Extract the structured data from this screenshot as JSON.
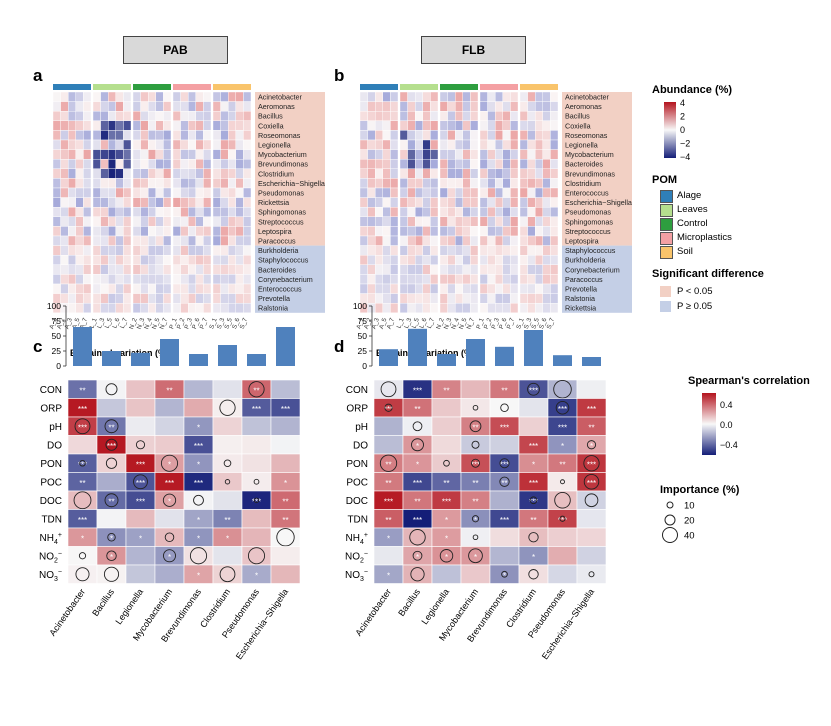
{
  "panels": {
    "left_title": "PAB",
    "right_title": "FLB",
    "labels": {
      "a": "a",
      "b": "b",
      "c": "c",
      "d": "d"
    }
  },
  "heatmap_a": {
    "genera": [
      "Acinetobacter",
      "Aeromonas",
      "Bacillus",
      "Coxiella",
      "Roseomonas",
      "Legionella",
      "Mycobacterium",
      "Brevundimonas",
      "Clostridium",
      "Escherichia−Shigella",
      "Pseudomonas",
      "Rickettsia",
      "Sphingomonas",
      "Streptococcus",
      "Leptospira",
      "Paracoccus",
      "Burkholderia",
      "Staphylococcus",
      "Bacteroides",
      "Corynebacterium",
      "Enterococcus",
      "Prevotella",
      "Ralstonia"
    ],
    "significant_count": 16
  },
  "heatmap_b": {
    "genera": [
      "Acinetobacter",
      "Aeromonas",
      "Bacillus",
      "Coxiella",
      "Roseomonas",
      "Legionella",
      "Mycobacterium",
      "Bacteroides",
      "Brevundimonas",
      "Clostridium",
      "Enterococcus",
      "Escherichia−Shigella",
      "Pseudomonas",
      "Sphingomonas",
      "Streptococcus",
      "Leptospira",
      "Staphylococcus",
      "Burkholderia",
      "Corynebacterium",
      "Paracoccus",
      "Prevotella",
      "Ralstonia",
      "Rickettsia"
    ],
    "significant_count": 16
  },
  "sample_labels": [
    "A_1",
    "A_2",
    "A_3",
    "A_5",
    "A_7",
    "L_1",
    "L_3",
    "L_5",
    "L_6",
    "L_7",
    "N_2",
    "N_3",
    "N_4",
    "N_5",
    "N_7",
    "P_1",
    "P_2",
    "P_3",
    "P_6",
    "P_7",
    "S_1",
    "S_3",
    "S_5",
    "S_6",
    "S_7"
  ],
  "legend": {
    "abundance_title": "Abundance (%)",
    "abundance_ticks": [
      "4",
      "2",
      "0",
      "−2",
      "−4"
    ],
    "pom_title": "POM",
    "pom_items": [
      {
        "label": "Alage",
        "color": "#2f7fb8"
      },
      {
        "label": "Leaves",
        "color": "#b5df8e"
      },
      {
        "label": "Control",
        "color": "#2e9e3f"
      },
      {
        "label": "Microplastics",
        "color": "#f4a0a3"
      },
      {
        "label": "Soil",
        "color": "#f9c46b"
      }
    ],
    "sig_title": "Significant difference",
    "sig_items": [
      {
        "label": "P < 0.05",
        "color": "#f2d0c4"
      },
      {
        "label": "P ≥ 0.05",
        "color": "#c4cfe6"
      }
    ],
    "spearman_title": "Spearman's correlation",
    "spearman_ticks": [
      "0.4",
      "0.0",
      "−0.4"
    ],
    "importance_title": "Importance (%)",
    "importance_items": [
      "10",
      "20",
      "40"
    ]
  },
  "corr_c": {
    "title": "Explained variation (%)",
    "genera": [
      "Acinetobacter",
      "Bacillus",
      "Legionella",
      "Mycobacterium",
      "Brevundimonas",
      "Clostridium",
      "Pseudomonas",
      "Escherichia−Shigella"
    ],
    "factors": [
      "CON",
      "ORP",
      "pH",
      "DO",
      "PON",
      "POC",
      "DOC",
      "TDN",
      "NH4+",
      "NO2−",
      "NO3−"
    ],
    "y_ticks": [
      "100",
      "75",
      "50",
      "25",
      "0"
    ],
    "explained": [
      65,
      25,
      22,
      45,
      20,
      35,
      20,
      65
    ]
  },
  "corr_d": {
    "title": "Explained variation (%)",
    "genera": [
      "Acinetobacter",
      "Bacillus",
      "Legionella",
      "Mycobacterium",
      "Brevundimonas",
      "Clostridium",
      "Pseudomonas",
      "Escherichia−Shigella"
    ],
    "factors": [
      "CON",
      "ORP",
      "pH",
      "DO",
      "PON",
      "POC",
      "DOC",
      "TDN",
      "NH4+",
      "NO2−",
      "NO3−"
    ],
    "y_ticks": [
      "100",
      "75",
      "50",
      "25",
      "0"
    ],
    "explained": [
      28,
      62,
      20,
      45,
      32,
      60,
      18,
      15
    ]
  }
}
